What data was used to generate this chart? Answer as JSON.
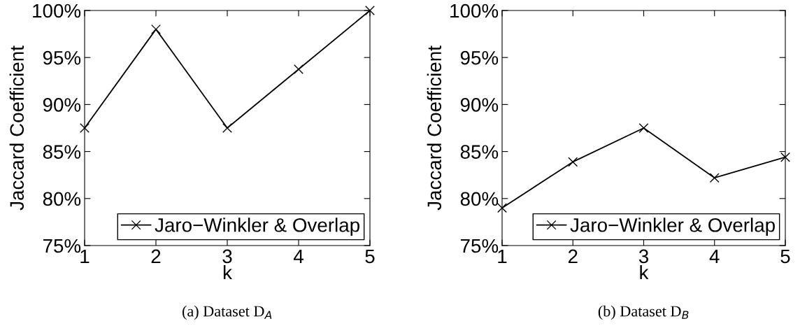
{
  "chart_data": [
    {
      "type": "line",
      "xlabel": "k",
      "ylabel": "Jaccard Coefficient",
      "x": [
        1,
        2,
        3,
        4,
        5
      ],
      "xlim": [
        1,
        5
      ],
      "xticks": [
        1,
        2,
        3,
        4,
        5
      ],
      "ylim": [
        75,
        100
      ],
      "yticks": [
        {
          "value": 75,
          "label": "75%"
        },
        {
          "value": 80,
          "label": "80%"
        },
        {
          "value": 85,
          "label": "85%"
        },
        {
          "value": 90,
          "label": "90%"
        },
        {
          "value": 95,
          "label": "95%"
        },
        {
          "value": 100,
          "label": "100%"
        }
      ],
      "grid": false,
      "legend": "bottom right",
      "marker": "cross",
      "line_style": "solid",
      "annotations": [
        "(a) Dataset D$_{A}$"
      ],
      "series": [
        {
          "name": "Jaro−Winkler & Overlap",
          "color": "#000000",
          "values": [
            87.5,
            98.0,
            87.5,
            93.75,
            100.0
          ]
        }
      ]
    },
    {
      "type": "line",
      "xlabel": "k",
      "ylabel": "Jaccard Coefficient",
      "x": [
        1,
        2,
        3,
        4,
        5
      ],
      "xlim": [
        1,
        5
      ],
      "xticks": [
        1,
        2,
        3,
        4,
        5
      ],
      "ylim": [
        75,
        100
      ],
      "yticks": [
        {
          "value": 75,
          "label": "75%"
        },
        {
          "value": 80,
          "label": "80%"
        },
        {
          "value": 85,
          "label": "85%"
        },
        {
          "value": 90,
          "label": "90%"
        },
        {
          "value": 95,
          "label": "95%"
        },
        {
          "value": 100,
          "label": "100%"
        }
      ],
      "grid": false,
      "legend": "bottom right",
      "marker": "cross",
      "line_style": "solid",
      "annotations": [
        "(b) Dataset D$_{B}$"
      ],
      "series": [
        {
          "name": "Jaro−Winkler & Overlap",
          "color": "#000000",
          "values": [
            79.0,
            83.9,
            87.5,
            82.2,
            84.4
          ]
        }
      ]
    }
  ]
}
